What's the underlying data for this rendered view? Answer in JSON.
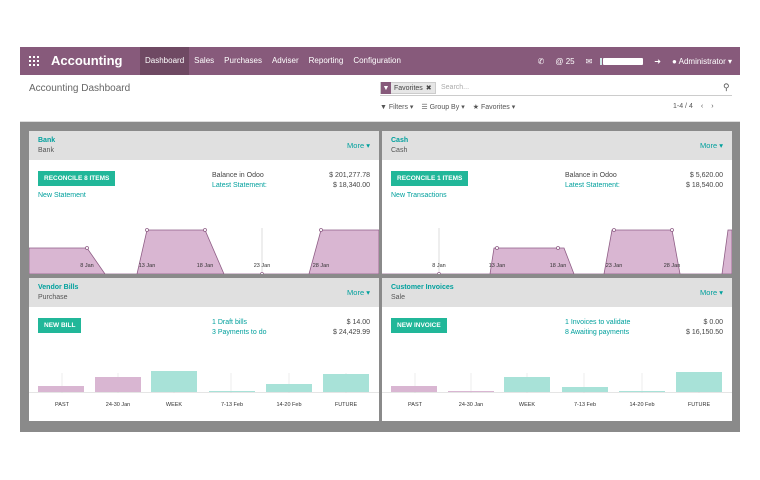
{
  "topbar": {
    "brand": "Accounting",
    "menu": [
      "Dashboard",
      "Sales",
      "Purchases",
      "Adviser",
      "Reporting",
      "Configuration"
    ],
    "active": "Dashboard",
    "phone_icon": "phone-icon",
    "chat_count": "25",
    "user": "Administrator",
    "color": "#875a7b"
  },
  "control_panel": {
    "title": "Accounting Dashboard",
    "facet_label": "Favorites",
    "search_placeholder": "Search...",
    "filters_label": "Filters",
    "groupby_label": "Group By",
    "favorites_label": "Favorites",
    "pager": "1-4 / 4"
  },
  "cards": [
    {
      "name": "Bank",
      "sub": "Bank",
      "more": "More",
      "button": "RECONCILE 8 ITEMS",
      "link": "New Statement",
      "label1": "Balance in Odoo",
      "label2": "Latest Statement:",
      "value1": "$ 201,277.78",
      "value2": "$ 18,340.00",
      "x_labels": [
        "8 Jan",
        "13 Jan",
        "18 Jan",
        "23 Jan",
        "28 Jan"
      ]
    },
    {
      "name": "Cash",
      "sub": "Cash",
      "more": "More",
      "button": "RECONCILE 1 ITEMS",
      "link": "New Transactions",
      "label1": "Balance in Odoo",
      "label2": "Latest Statement:",
      "value1": "$ 5,620.00",
      "value2": "$ 18,540.00",
      "x_labels": [
        "8 Jan",
        "13 Jan",
        "18 Jan",
        "23 Jan",
        "28 Jan"
      ]
    },
    {
      "name": "Vendor Bills",
      "sub": "Purchase",
      "more": "More",
      "button": "NEW BILL",
      "label1": "1 Draft bills",
      "label2": "3 Payments to do",
      "value1": "$ 14.00",
      "value2": "$ 24,429.99",
      "x_labels": [
        "PAST",
        "24-30 Jan",
        "WEEK",
        "7-13 Feb",
        "14-20 Feb",
        "FUTURE"
      ]
    },
    {
      "name": "Customer Invoices",
      "sub": "Sale",
      "more": "More",
      "button": "NEW INVOICE",
      "label1": "1 Invoices to validate",
      "label2": "8 Awaiting payments",
      "value1": "$ 0.00",
      "value2": "$ 16,150.50",
      "x_labels": [
        "PAST",
        "24-30 Jan",
        "WEEK",
        "7-13 Feb",
        "14-20 Feb",
        "FUTURE"
      ]
    }
  ]
}
